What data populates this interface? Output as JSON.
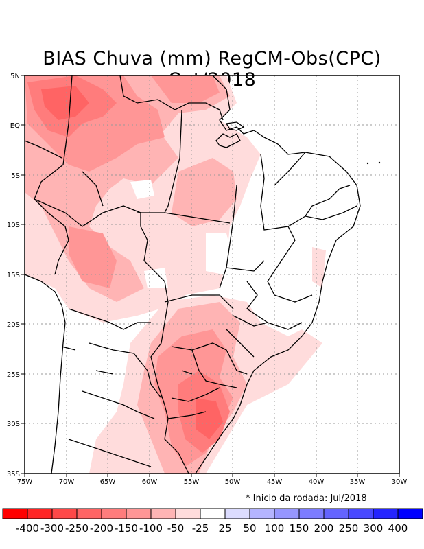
{
  "title": "BIAS Chuva (mm) RegCM-Obs(CPC) Oct/2018",
  "note": "* Inicio da rodada: Jul/2018",
  "axes": {
    "lon_labels": [
      "75W",
      "70W",
      "65W",
      "60W",
      "55W",
      "50W",
      "45W",
      "40W",
      "35W",
      "30W"
    ],
    "lat_labels": [
      "5N",
      "EQ",
      "5S",
      "10S",
      "15S",
      "20S",
      "25S",
      "30S",
      "35S"
    ]
  },
  "legend": {
    "colors": [
      "#ff0000",
      "#ff2424",
      "#ff4848",
      "#ff6464",
      "#ff7c7c",
      "#ff9696",
      "#ffb4b4",
      "#ffdcdc",
      "#ffffff",
      "#dcdcff",
      "#b4b4ff",
      "#9696ff",
      "#7c7cff",
      "#6464ff",
      "#4848ff",
      "#2424ff",
      "#0000ff"
    ],
    "labels": [
      "-400",
      "-300",
      "-250",
      "-200",
      "-150",
      "-100",
      "-50",
      "-25",
      "25",
      "50",
      "100",
      "150",
      "200",
      "250",
      "300",
      "400"
    ]
  },
  "colors": {
    "frame": "#000000",
    "grid": "#999999"
  }
}
